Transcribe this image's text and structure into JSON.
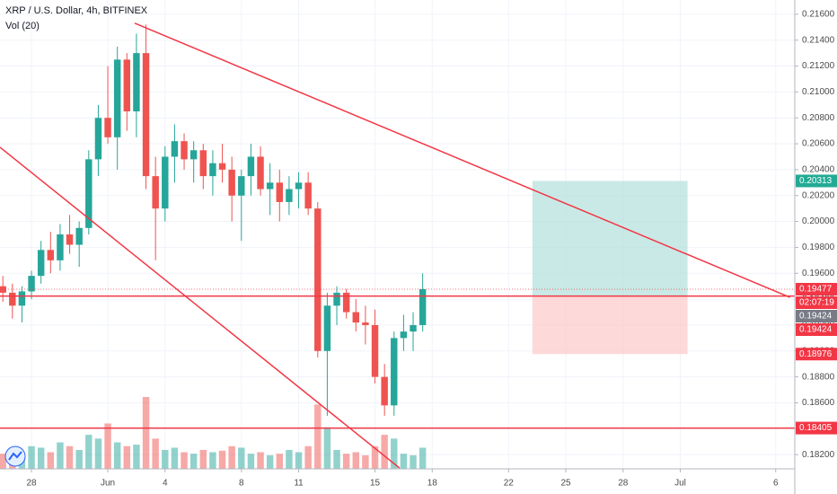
{
  "chart_data": {
    "type": "candlestick",
    "title": "XRP / U.S. Dollar, 4h, BITFINEX",
    "volume_title": "Vol (20)",
    "up_color": "#26a69a",
    "down_color": "#ef5350",
    "x": [
      -1.5,
      -1,
      -0.5,
      0,
      0.5,
      1,
      1.5,
      2,
      2.5,
      3,
      3.5,
      4,
      4.5,
      5,
      5.5,
      6,
      6.5,
      7,
      7.5,
      8,
      8.5,
      9,
      9.5,
      10,
      10.5,
      11,
      11.5,
      12,
      12.5,
      13,
      13.5,
      14,
      14.5,
      15,
      15.5,
      16,
      16.5,
      17,
      17.5,
      18,
      18.5,
      19,
      19.5,
      20,
      20.5
    ],
    "open": [
      0.195,
      0.1945,
      0.1935,
      0.1946,
      0.1958,
      0.1978,
      0.197,
      0.199,
      0.1982,
      0.1995,
      0.2048,
      0.208,
      0.2065,
      0.2125,
      0.2085,
      0.213,
      0.2035,
      0.201,
      0.205,
      0.2062,
      0.2048,
      0.2055,
      0.2035,
      0.2045,
      0.204,
      0.202,
      0.2035,
      0.205,
      0.2025,
      0.203,
      0.2015,
      0.2025,
      0.203,
      0.201,
      0.19,
      0.1935,
      0.1945,
      0.193,
      0.1922,
      0.192,
      0.188,
      0.1858,
      0.191,
      0.1915,
      0.192
    ],
    "high": [
      0.1958,
      0.1952,
      0.195,
      0.1962,
      0.1985,
      0.1992,
      0.1998,
      0.2005,
      0.2,
      0.2055,
      0.209,
      0.212,
      0.2135,
      0.213,
      0.2145,
      0.2152,
      0.205,
      0.2058,
      0.2075,
      0.2068,
      0.2062,
      0.206,
      0.2055,
      0.206,
      0.205,
      0.204,
      0.206,
      0.2058,
      0.2045,
      0.204,
      0.2035,
      0.2038,
      0.2038,
      0.2015,
      0.1945,
      0.195,
      0.1948,
      0.194,
      0.1935,
      0.1932,
      0.189,
      0.1915,
      0.1928,
      0.193,
      0.196
    ],
    "low": [
      0.1938,
      0.1925,
      0.1922,
      0.194,
      0.1952,
      0.196,
      0.1962,
      0.1975,
      0.1965,
      0.199,
      0.2035,
      0.206,
      0.204,
      0.207,
      0.2065,
      0.2025,
      0.197,
      0.2,
      0.203,
      0.204,
      0.203,
      0.2025,
      0.202,
      0.203,
      0.2,
      0.1985,
      0.202,
      0.202,
      0.2005,
      0.2,
      0.2005,
      0.201,
      0.2005,
      0.1895,
      0.185,
      0.192,
      0.1925,
      0.1915,
      0.1905,
      0.1875,
      0.185,
      0.185,
      0.19,
      0.19,
      0.1915
    ],
    "close": [
      0.1945,
      0.1935,
      0.1946,
      0.1958,
      0.1978,
      0.197,
      0.199,
      0.1982,
      0.1995,
      0.2048,
      0.208,
      0.2065,
      0.2125,
      0.2085,
      0.213,
      0.2035,
      0.201,
      0.205,
      0.2062,
      0.2048,
      0.2055,
      0.2035,
      0.2045,
      0.204,
      0.202,
      0.2035,
      0.205,
      0.2025,
      0.203,
      0.2015,
      0.2025,
      0.203,
      0.201,
      0.19,
      0.1935,
      0.1945,
      0.193,
      0.1922,
      0.192,
      0.188,
      0.1858,
      0.191,
      0.1915,
      0.192,
      0.19477
    ],
    "volume": [
      20,
      25,
      18,
      30,
      28,
      22,
      35,
      30,
      25,
      45,
      40,
      60,
      35,
      30,
      32,
      95,
      40,
      25,
      28,
      22,
      20,
      25,
      22,
      24,
      30,
      28,
      20,
      22,
      18,
      20,
      25,
      22,
      30,
      85,
      55,
      25,
      20,
      22,
      18,
      30,
      45,
      40,
      20,
      18,
      28
    ],
    "xlim": [
      -1.65,
      40
    ],
    "ylim": [
      0.1809,
      0.2171
    ],
    "xticks": [
      {
        "value": 0,
        "label": "28"
      },
      {
        "value": 4,
        "label": "Jun"
      },
      {
        "value": 7,
        "label": "4"
      },
      {
        "value": 11,
        "label": "8"
      },
      {
        "value": 14,
        "label": "11"
      },
      {
        "value": 18,
        "label": "15"
      },
      {
        "value": 21,
        "label": "18"
      },
      {
        "value": 25,
        "label": "22"
      },
      {
        "value": 28,
        "label": "25"
      },
      {
        "value": 31,
        "label": "28"
      },
      {
        "value": 34,
        "label": "Jul"
      },
      {
        "value": 39,
        "label": "6"
      }
    ],
    "yticks": [
      {
        "value": 0.182,
        "label": "0.18200"
      },
      {
        "value": 0.184,
        "label": "0.18400"
      },
      {
        "value": 0.186,
        "label": "0.18600"
      },
      {
        "value": 0.188,
        "label": "0.18800"
      },
      {
        "value": 0.19,
        "label": "0.19000"
      },
      {
        "value": 0.192,
        "label": "0.19200"
      },
      {
        "value": 0.194,
        "label": "0.19400"
      },
      {
        "value": 0.196,
        "label": "0.19600"
      },
      {
        "value": 0.198,
        "label": "0.19800"
      },
      {
        "value": 0.2,
        "label": "0.20000"
      },
      {
        "value": 0.202,
        "label": "0.20200"
      },
      {
        "value": 0.204,
        "label": "0.20400"
      },
      {
        "value": 0.206,
        "label": "0.20600"
      },
      {
        "value": 0.208,
        "label": "0.20800"
      },
      {
        "value": 0.21,
        "label": "0.21000"
      },
      {
        "value": 0.212,
        "label": "0.21200"
      },
      {
        "value": 0.214,
        "label": "0.21400"
      },
      {
        "value": 0.216,
        "label": "0.21600"
      }
    ],
    "trend_lines": [
      {
        "x": [
          5.41,
          39.75
        ],
        "y": [
          0.21531,
          0.19414
        ],
        "color": "#f23645"
      },
      {
        "x": [
          -1.65,
          19.29
        ],
        "y": [
          0.20573,
          0.18096
        ],
        "color": "#f23645"
      }
    ],
    "levels": [
      {
        "value": 0.19424,
        "color": "#f23645"
      },
      {
        "value": 0.18405,
        "color": "#f23645"
      }
    ],
    "position": {
      "x": [
        26.25,
        34.38
      ],
      "target": 0.20313,
      "entry": 0.19424,
      "stop": 0.18976,
      "profit_color": "#b2dfdb",
      "loss_color": "#fcc9c9",
      "target_label_color": "#22ab94",
      "entry_label_color": "#787b86",
      "stop_label_color": "#f23645"
    },
    "last_price": 0.19477,
    "last_price_color": "#f23645",
    "countdown": "02:07:19"
  }
}
